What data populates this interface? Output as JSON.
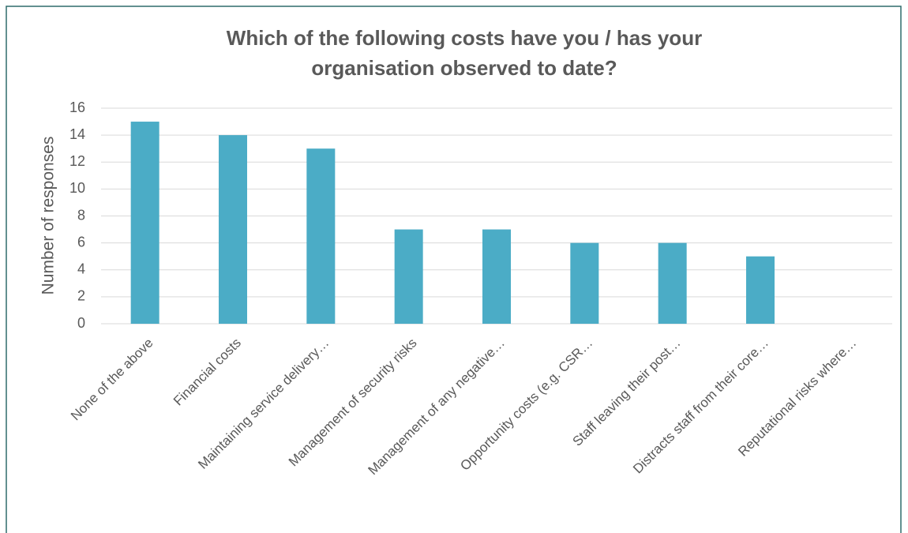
{
  "chart_data": {
    "type": "bar",
    "title": [
      "Which of the following costs have you / has your",
      "organisation observed to date?"
    ],
    "y_label": "Number of responses",
    "categories": [
      "None of the above",
      "Financial costs",
      "Maintaining service delivery…",
      "Management of security risks",
      "Management of any negative…",
      "Opportunity costs (e.g. CSR…",
      "Staff leaving their post…",
      "Distracts staff from their core…",
      "Reputational risks where…"
    ],
    "values": [
      15,
      14,
      13,
      7,
      7,
      6,
      6,
      5,
      0
    ],
    "color": "#4bacc6",
    "ylim": [
      0,
      16
    ],
    "yticks": [
      0,
      2,
      4,
      6,
      8,
      10,
      12,
      14,
      16
    ],
    "grid": true
  }
}
